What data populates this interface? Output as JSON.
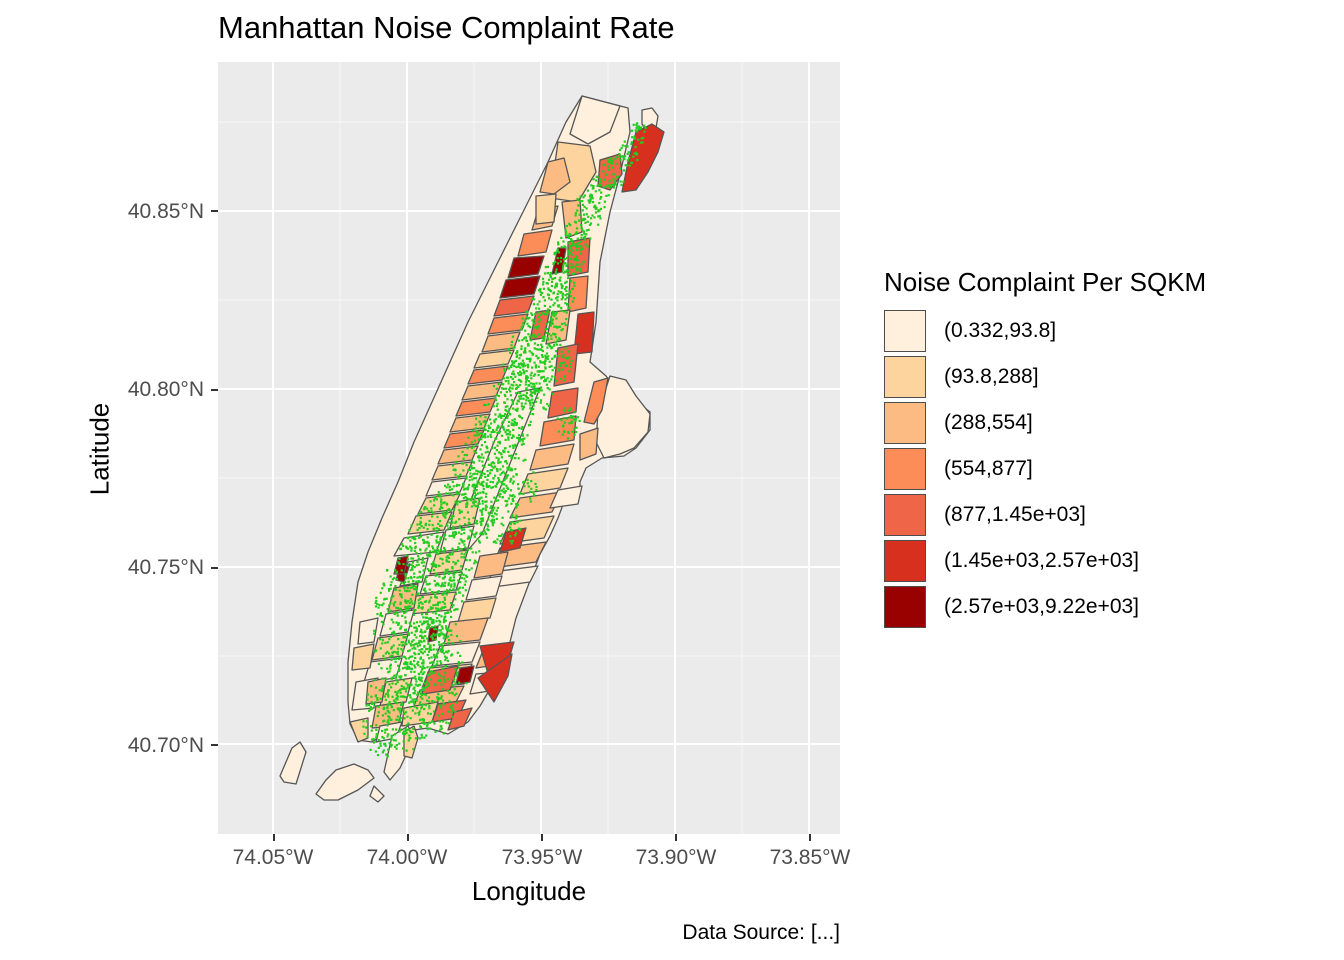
{
  "title": "Manhattan Noise Complaint Rate",
  "axes": {
    "xlabel": "Longitude",
    "ylabel": "Latitude",
    "xticks": [
      "74.05°W",
      "74.00°W",
      "73.95°W",
      "73.90°W",
      "73.85°W"
    ],
    "yticks": [
      "40.85°N",
      "40.80°N",
      "40.75°N",
      "40.70°N"
    ],
    "xlim": [
      -74.07,
      -73.84
    ],
    "ylim": [
      40.675,
      40.892
    ]
  },
  "legend": {
    "title": "Noise Complaint Per SQKM",
    "items": [
      {
        "label": "(0.332,93.8]",
        "color": "#fef0dc"
      },
      {
        "label": "(93.8,288]",
        "color": "#fdd49e"
      },
      {
        "label": "(288,554]",
        "color": "#fdbb84"
      },
      {
        "label": "(554,877]",
        "color": "#fc8d59"
      },
      {
        "label": "(877,1.45e+03]",
        "color": "#ef6548"
      },
      {
        "label": "(1.45e+03,2.57e+03]",
        "color": "#d7301f"
      },
      {
        "label": "(2.57e+03,9.22e+03]",
        "color": "#990000"
      }
    ]
  },
  "points_color": "#22cc22",
  "panel_background": "#ebebeb",
  "caption": "Data Source: [...]"
}
